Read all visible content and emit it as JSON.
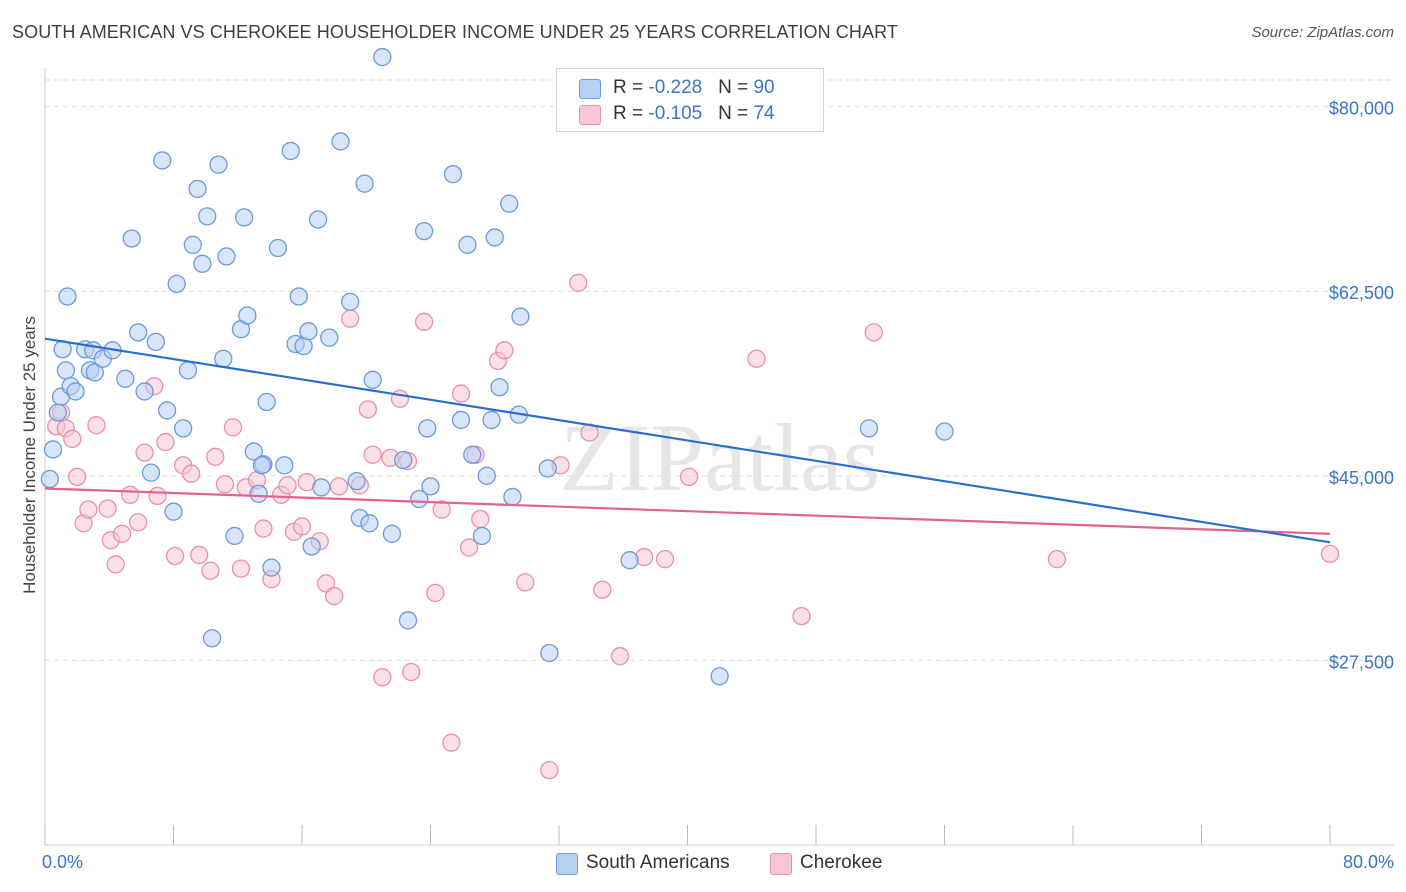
{
  "header": {
    "title": "SOUTH AMERICAN VS CHEROKEE HOUSEHOLDER INCOME UNDER 25 YEARS CORRELATION CHART",
    "source": "Source: ZipAtlas.com"
  },
  "watermark": "ZIPatlas",
  "legend_stats": [
    {
      "r_label": "R = ",
      "r_value": "-0.228",
      "n_label": "N = ",
      "n_value": "90",
      "color": "#a9c8f0"
    },
    {
      "r_label": "R = ",
      "r_value": "-0.105",
      "n_label": "N = ",
      "n_value": "74",
      "color": "#f7bccd"
    }
  ],
  "colors": {
    "south_fill": "#b5d0f2",
    "south_stroke": "#6d9ad8",
    "south_line": "#2a6fcf",
    "cherokee_fill": "#f8c6d5",
    "cherokee_stroke": "#e98fab",
    "cherokee_line": "#e0648f",
    "axis_label": "#3a76c4",
    "grid": "#dddddd"
  },
  "chart_data": {
    "type": "scatter",
    "title": "SOUTH AMERICAN VS CHEROKEE HOUSEHOLDER INCOME UNDER 25 YEARS CORRELATION CHART",
    "xlabel": "",
    "ylabel": "Householder Income Under 25 years",
    "x_unit": "%",
    "xlim": [
      0,
      80
    ],
    "ylim": [
      10000,
      83000
    ],
    "x_tick_labels": [
      "0.0%",
      "80.0%"
    ],
    "y_ticks": [
      27500,
      45000,
      62500,
      80000
    ],
    "y_tick_labels": [
      "$27,500",
      "$45,000",
      "$62,500",
      "$80,000"
    ],
    "grid": true,
    "legend_position": "bottom",
    "series": [
      {
        "name": "South Americans",
        "r": -0.228,
        "n": 90,
        "trend": {
          "x": [
            0,
            80
          ],
          "y": [
            58000,
            38700
          ]
        },
        "points": [
          [
            0.3,
            44700
          ],
          [
            0.5,
            47500
          ],
          [
            0.8,
            51000
          ],
          [
            1.0,
            52500
          ],
          [
            1.1,
            57000
          ],
          [
            1.3,
            55000
          ],
          [
            1.4,
            62000
          ],
          [
            1.6,
            53500
          ],
          [
            1.9,
            53000
          ],
          [
            2.5,
            57000
          ],
          [
            2.8,
            55000
          ],
          [
            3.0,
            56900
          ],
          [
            3.1,
            54800
          ],
          [
            3.6,
            56100
          ],
          [
            4.2,
            56900
          ],
          [
            5.0,
            54200
          ],
          [
            5.4,
            67500
          ],
          [
            5.8,
            58600
          ],
          [
            6.2,
            53000
          ],
          [
            6.6,
            45300
          ],
          [
            6.9,
            57700
          ],
          [
            7.3,
            74900
          ],
          [
            7.6,
            51200
          ],
          [
            8.0,
            41600
          ],
          [
            8.2,
            63200
          ],
          [
            8.6,
            49500
          ],
          [
            8.9,
            55000
          ],
          [
            9.2,
            66900
          ],
          [
            9.5,
            72200
          ],
          [
            9.8,
            65100
          ],
          [
            10.1,
            69600
          ],
          [
            10.4,
            29600
          ],
          [
            10.8,
            74500
          ],
          [
            11.1,
            56100
          ],
          [
            11.3,
            65800
          ],
          [
            11.8,
            39300
          ],
          [
            12.2,
            58900
          ],
          [
            12.4,
            69500
          ],
          [
            12.6,
            60200
          ],
          [
            13.0,
            47300
          ],
          [
            13.3,
            43300
          ],
          [
            13.6,
            46100
          ],
          [
            13.8,
            52000
          ],
          [
            14.1,
            36300
          ],
          [
            14.5,
            66600
          ],
          [
            14.9,
            46000
          ],
          [
            15.3,
            75800
          ],
          [
            15.6,
            57500
          ],
          [
            15.8,
            62000
          ],
          [
            16.1,
            57300
          ],
          [
            16.4,
            58700
          ],
          [
            16.6,
            38300
          ],
          [
            17.0,
            69300
          ],
          [
            17.2,
            43900
          ],
          [
            17.7,
            58100
          ],
          [
            18.4,
            76700
          ],
          [
            19.0,
            61500
          ],
          [
            19.4,
            44500
          ],
          [
            19.6,
            41000
          ],
          [
            19.9,
            72700
          ],
          [
            20.2,
            40500
          ],
          [
            20.4,
            54100
          ],
          [
            21.0,
            84700
          ],
          [
            21.6,
            39500
          ],
          [
            22.3,
            46500
          ],
          [
            22.6,
            31300
          ],
          [
            23.3,
            42800
          ],
          [
            23.6,
            68200
          ],
          [
            23.8,
            49500
          ],
          [
            24.0,
            44000
          ],
          [
            25.4,
            73600
          ],
          [
            25.9,
            50300
          ],
          [
            26.3,
            66900
          ],
          [
            26.6,
            47000
          ],
          [
            27.2,
            39300
          ],
          [
            27.5,
            45000
          ],
          [
            27.8,
            50300
          ],
          [
            28.0,
            67600
          ],
          [
            28.3,
            53400
          ],
          [
            28.9,
            70800
          ],
          [
            29.1,
            43000
          ],
          [
            29.5,
            50800
          ],
          [
            29.6,
            60100
          ],
          [
            31.3,
            45700
          ],
          [
            31.4,
            28200
          ],
          [
            36.4,
            37000
          ],
          [
            42.0,
            26000
          ],
          [
            51.3,
            49500
          ],
          [
            56.0,
            49200
          ],
          [
            13.5,
            46000
          ]
        ]
      },
      {
        "name": "Cherokee",
        "r": -0.105,
        "n": 74,
        "trend": {
          "x": [
            0,
            80
          ],
          "y": [
            43800,
            39500
          ]
        },
        "points": [
          [
            0.7,
            49700
          ],
          [
            1.0,
            51000
          ],
          [
            1.3,
            49500
          ],
          [
            1.7,
            48500
          ],
          [
            2.0,
            44900
          ],
          [
            2.4,
            40500
          ],
          [
            2.7,
            41800
          ],
          [
            3.2,
            49800
          ],
          [
            3.9,
            41900
          ],
          [
            4.1,
            38900
          ],
          [
            4.4,
            36600
          ],
          [
            4.8,
            39500
          ],
          [
            5.3,
            43200
          ],
          [
            5.8,
            40600
          ],
          [
            6.2,
            47200
          ],
          [
            6.8,
            53500
          ],
          [
            7.0,
            43100
          ],
          [
            7.5,
            48200
          ],
          [
            8.1,
            37400
          ],
          [
            8.6,
            46000
          ],
          [
            9.1,
            45200
          ],
          [
            9.6,
            37500
          ],
          [
            10.3,
            36000
          ],
          [
            10.6,
            46800
          ],
          [
            11.2,
            44200
          ],
          [
            11.7,
            49600
          ],
          [
            12.2,
            36200
          ],
          [
            12.5,
            43900
          ],
          [
            13.2,
            44600
          ],
          [
            13.6,
            40000
          ],
          [
            14.1,
            35200
          ],
          [
            14.7,
            43200
          ],
          [
            15.1,
            44100
          ],
          [
            15.5,
            39700
          ],
          [
            16.0,
            40200
          ],
          [
            16.3,
            44400
          ],
          [
            17.1,
            38800
          ],
          [
            17.5,
            34800
          ],
          [
            18.0,
            33600
          ],
          [
            18.3,
            44000
          ],
          [
            19.0,
            59900
          ],
          [
            19.6,
            44100
          ],
          [
            20.1,
            51300
          ],
          [
            20.4,
            47000
          ],
          [
            21.0,
            25900
          ],
          [
            21.5,
            46700
          ],
          [
            22.1,
            52300
          ],
          [
            22.6,
            46400
          ],
          [
            22.8,
            26400
          ],
          [
            23.6,
            59600
          ],
          [
            24.3,
            33900
          ],
          [
            24.7,
            41800
          ],
          [
            25.3,
            19700
          ],
          [
            25.9,
            52800
          ],
          [
            26.4,
            38200
          ],
          [
            26.8,
            47000
          ],
          [
            27.1,
            40900
          ],
          [
            28.2,
            55900
          ],
          [
            28.6,
            56900
          ],
          [
            29.9,
            34900
          ],
          [
            31.4,
            17100
          ],
          [
            32.1,
            46000
          ],
          [
            33.2,
            63300
          ],
          [
            33.9,
            49100
          ],
          [
            34.7,
            34200
          ],
          [
            35.8,
            27900
          ],
          [
            37.3,
            37300
          ],
          [
            38.6,
            37100
          ],
          [
            40.1,
            44900
          ],
          [
            44.3,
            56100
          ],
          [
            47.1,
            31700
          ],
          [
            51.6,
            58600
          ],
          [
            63.0,
            37100
          ],
          [
            80.0,
            37600
          ]
        ]
      }
    ]
  }
}
